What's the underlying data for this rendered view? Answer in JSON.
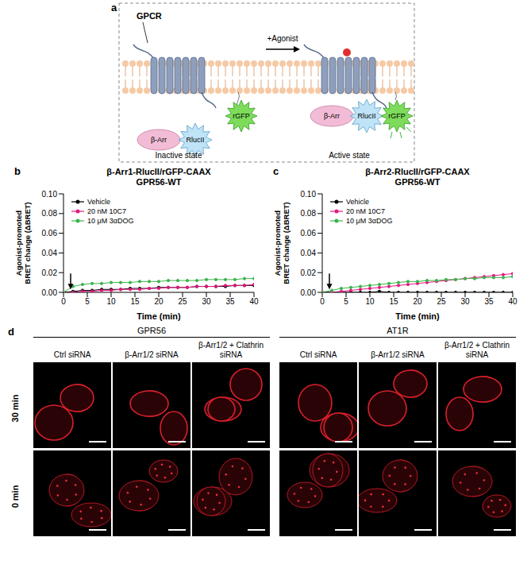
{
  "schematic": {
    "panel": "a",
    "receptor": "GPCR",
    "acceptor": "rGFP",
    "stimulus": "+Agonist",
    "arrestin": "β-Arr",
    "donor": "RlucII",
    "states": [
      "Inactive state",
      "Active state"
    ]
  },
  "chart_data": [
    {
      "panel": "b",
      "type": "line",
      "title": "β-Arr1-RlucII/rGFP-CAAX",
      "subtitle": "GPR56-WT",
      "xlabel": "Time (min)",
      "ylabel": "Agonist-promoted BRET change (ΔBRET)",
      "x": [
        0,
        2,
        4,
        6,
        8,
        10,
        12,
        14,
        16,
        18,
        20,
        22,
        24,
        26,
        28,
        30,
        32,
        34,
        36,
        38,
        40
      ],
      "series": [
        {
          "name": "Vehicle",
          "color": "#000000",
          "values": [
            0,
            0.001,
            0.002,
            0.002,
            0.003,
            0.003,
            0.003,
            0.004,
            0.004,
            0.004,
            0.005,
            0.005,
            0.005,
            0.005,
            0.006,
            0.006,
            0.006,
            0.006,
            0.007,
            0.007,
            0.007
          ]
        },
        {
          "name": "20 nM 10C7",
          "color": "#e6197f",
          "values": [
            0,
            0,
            0.001,
            0.001,
            0.002,
            0.002,
            0.003,
            0.003,
            0.003,
            0.004,
            0.004,
            0.005,
            0.005,
            0.005,
            0.006,
            0.006,
            0.006,
            0.007,
            0.007,
            0.007,
            0.008
          ]
        },
        {
          "name": "10 μM 3αDOG",
          "color": "#3cb44b",
          "values": [
            0,
            0.006,
            0.008,
            0.009,
            0.009,
            0.01,
            0.01,
            0.01,
            0.011,
            0.011,
            0.011,
            0.012,
            0.012,
            0.012,
            0.012,
            0.013,
            0.013,
            0.013,
            0.013,
            0.014,
            0.014
          ]
        }
      ],
      "xlim": [
        0,
        40
      ],
      "xticks": [
        0,
        5,
        10,
        15,
        20,
        25,
        30,
        35,
        40
      ],
      "ylim": [
        0,
        0.1
      ],
      "yticks": [
        {
          "value": 0,
          "label": "0.00"
        },
        0.02,
        0.04,
        0.06,
        0.08,
        {
          "value": 0.1,
          "label": "0.10"
        }
      ],
      "legend": "upper left",
      "marker": "circle",
      "agonist_arrow": {
        "x": 1.5,
        "y": 0.003
      }
    },
    {
      "panel": "c",
      "type": "line",
      "title": "β-Arr2-RlucII/rGFP-CAAX",
      "subtitle": "GPR56-WT",
      "xlabel": "Time (min)",
      "ylabel": "Agonist-promoted BRET change (ΔBRET)",
      "x": [
        0,
        2,
        4,
        6,
        8,
        10,
        12,
        14,
        16,
        18,
        20,
        22,
        24,
        26,
        28,
        30,
        32,
        34,
        36,
        38,
        40
      ],
      "series": [
        {
          "name": "Vehicle",
          "color": "#000000",
          "values": [
            0,
            0,
            0,
            0,
            0,
            0,
            0.001,
            0,
            0,
            0,
            0,
            0,
            0,
            0,
            0,
            0,
            0,
            0,
            0,
            0,
            0
          ]
        },
        {
          "name": "20 nM 10C7",
          "color": "#e6197f",
          "values": [
            0,
            0,
            0.001,
            0.002,
            0.003,
            0.004,
            0.005,
            0.006,
            0.007,
            0.008,
            0.009,
            0.01,
            0.011,
            0.012,
            0.013,
            0.014,
            0.015,
            0.016,
            0.017,
            0.018,
            0.019
          ]
        },
        {
          "name": "10 μM 3αDOG",
          "color": "#3cb44b",
          "values": [
            0,
            0.002,
            0.004,
            0.005,
            0.006,
            0.007,
            0.008,
            0.009,
            0.01,
            0.011,
            0.011,
            0.012,
            0.012,
            0.013,
            0.013,
            0.014,
            0.014,
            0.015,
            0.015,
            0.015,
            0.016
          ]
        }
      ],
      "xlim": [
        0,
        40
      ],
      "xticks": [
        0,
        5,
        10,
        15,
        20,
        25,
        30,
        35,
        40
      ],
      "ylim": [
        0,
        0.1
      ],
      "yticks": [
        {
          "value": 0,
          "label": "0.00"
        },
        0.02,
        0.04,
        0.06,
        0.08,
        {
          "value": 0.1,
          "label": "0.10"
        }
      ],
      "legend": "upper left",
      "marker": "circle",
      "agonist_arrow": {
        "x": 1.5,
        "y": 0.003
      }
    }
  ],
  "micrographs": {
    "panel": "d",
    "groups": [
      "GPR56",
      "AT1R"
    ],
    "columns": [
      "Ctrl siRNA",
      "β-Arr1/2 siRNA",
      "β-Arr1/2 + Clathrin siRNA"
    ],
    "rows": [
      "30 min",
      "0 min"
    ]
  }
}
